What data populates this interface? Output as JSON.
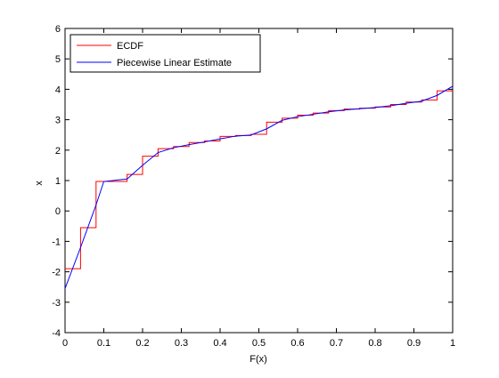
{
  "chart_data": {
    "type": "line",
    "xlabel": "F(x)",
    "ylabel": "x",
    "xlim": [
      0,
      1
    ],
    "ylim": [
      -4,
      6
    ],
    "xticks": [
      0,
      0.1,
      0.2,
      0.3,
      0.4,
      0.5,
      0.6,
      0.7,
      0.8,
      0.9,
      1
    ],
    "xtick_labels": [
      "0",
      "0.1",
      "0.2",
      "0.3",
      "0.4",
      "0.5",
      "0.6",
      "0.7",
      "0.8",
      "0.9",
      "1"
    ],
    "yticks": [
      -4,
      -3,
      -2,
      -1,
      0,
      1,
      2,
      3,
      4,
      5,
      6
    ],
    "ytick_labels": [
      "-4",
      "-3",
      "-2",
      "-1",
      "0",
      "1",
      "2",
      "3",
      "4",
      "5",
      "6"
    ],
    "grid": false,
    "legend_position": "top-left",
    "series": [
      {
        "name": "ECDF",
        "color": "#ff0000",
        "style": "step",
        "x": [
          0,
          0.04,
          0.04,
          0.08,
          0.08,
          0.1,
          0.1,
          0.16,
          0.16,
          0.2,
          0.2,
          0.24,
          0.24,
          0.28,
          0.28,
          0.32,
          0.32,
          0.36,
          0.36,
          0.4,
          0.4,
          0.44,
          0.44,
          0.48,
          0.48,
          0.52,
          0.52,
          0.56,
          0.56,
          0.6,
          0.6,
          0.64,
          0.64,
          0.68,
          0.68,
          0.72,
          0.72,
          0.76,
          0.76,
          0.8,
          0.8,
          0.84,
          0.84,
          0.88,
          0.88,
          0.92,
          0.92,
          0.96,
          0.96,
          1.0
        ],
        "y": [
          -1.9,
          -1.9,
          -0.55,
          -0.55,
          0.97,
          0.97,
          0.97,
          0.97,
          1.2,
          1.2,
          1.8,
          1.8,
          2.05,
          2.05,
          2.12,
          2.12,
          2.25,
          2.25,
          2.3,
          2.3,
          2.45,
          2.45,
          2.48,
          2.48,
          2.52,
          2.52,
          2.92,
          2.92,
          3.05,
          3.05,
          3.15,
          3.15,
          3.22,
          3.22,
          3.3,
          3.3,
          3.35,
          3.35,
          3.38,
          3.38,
          3.42,
          3.42,
          3.5,
          3.5,
          3.58,
          3.58,
          3.65,
          3.65,
          3.95,
          3.95
        ]
      },
      {
        "name": "Piecewise Linear Estimate",
        "color": "#0000ff",
        "style": "line",
        "x": [
          0,
          0.04,
          0.08,
          0.1,
          0.16,
          0.2,
          0.24,
          0.28,
          0.32,
          0.36,
          0.4,
          0.44,
          0.48,
          0.52,
          0.56,
          0.6,
          0.64,
          0.68,
          0.72,
          0.76,
          0.8,
          0.84,
          0.88,
          0.92,
          0.96,
          1.0
        ],
        "y": [
          -2.55,
          -1.2,
          0.2,
          0.97,
          1.05,
          1.5,
          1.92,
          2.08,
          2.18,
          2.27,
          2.37,
          2.46,
          2.5,
          2.7,
          2.98,
          3.1,
          3.18,
          3.26,
          3.32,
          3.36,
          3.4,
          3.46,
          3.54,
          3.61,
          3.8,
          4.1
        ]
      }
    ]
  }
}
